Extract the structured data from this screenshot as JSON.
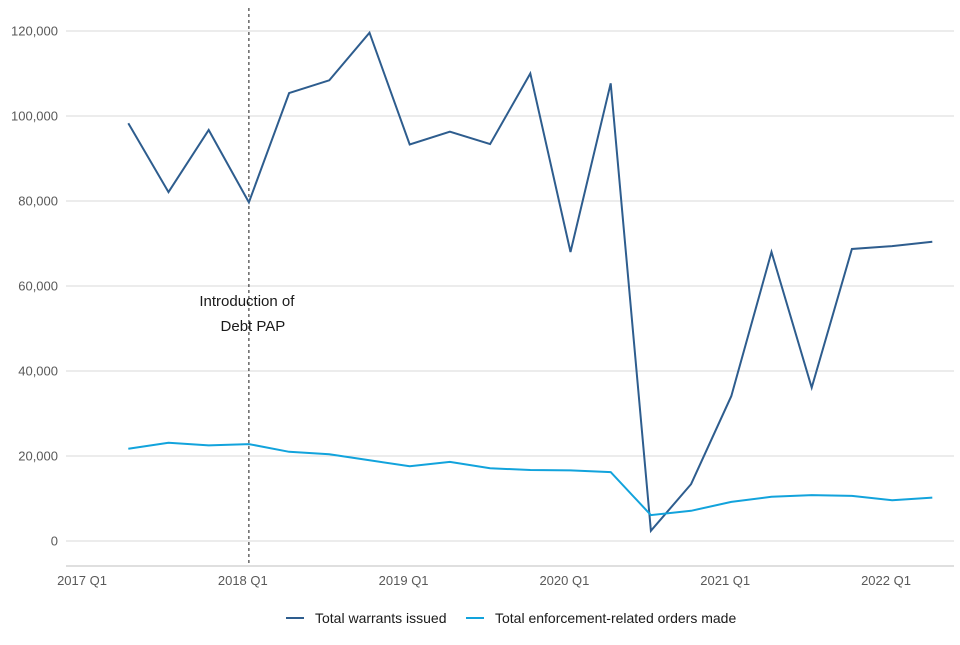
{
  "chart_data": {
    "type": "line",
    "title": "",
    "xlabel": "",
    "ylabel": "",
    "x_ticks": [
      "2017 Q1",
      "2018 Q1",
      "2019 Q1",
      "2020 Q1",
      "2021 Q1",
      "2022 Q1"
    ],
    "y_ticks": [
      "0",
      "20,000",
      "40,000",
      "60,000",
      "80,000",
      "100,000",
      "120,000"
    ],
    "ylim": [
      0,
      120000
    ],
    "grid": true,
    "legend_position": "bottom",
    "x": [
      "2017 Q2",
      "2017 Q3",
      "2017 Q4",
      "2018 Q1",
      "2018 Q2",
      "2018 Q3",
      "2018 Q4",
      "2019 Q1",
      "2019 Q2",
      "2019 Q3",
      "2019 Q4",
      "2020 Q1",
      "2020 Q2",
      "2020 Q3",
      "2020 Q4",
      "2021 Q1",
      "2021 Q2",
      "2021 Q3",
      "2021 Q4",
      "2022 Q1",
      "2022 Q2"
    ],
    "series": [
      {
        "name": "Total warrants issued",
        "color": "#2e5d8e",
        "values": [
          98300,
          82100,
          96700,
          79700,
          105400,
          108400,
          119600,
          93300,
          96300,
          93400,
          110000,
          68000,
          107700,
          2400,
          13400,
          34100,
          68000,
          36100,
          68700,
          69400,
          70400
        ]
      },
      {
        "name": "Total enforcement-related orders made",
        "color": "#12a3dc",
        "values": [
          21700,
          23100,
          22500,
          22800,
          21000,
          20400,
          19000,
          17600,
          18600,
          17100,
          16700,
          16600,
          16200,
          6100,
          7100,
          9200,
          10400,
          10800,
          10600,
          9600,
          10200
        ]
      }
    ],
    "annotations": [
      {
        "x": "2018 Q1",
        "lines": [
          "Introduction of",
          "Debt PAP"
        ]
      }
    ]
  }
}
